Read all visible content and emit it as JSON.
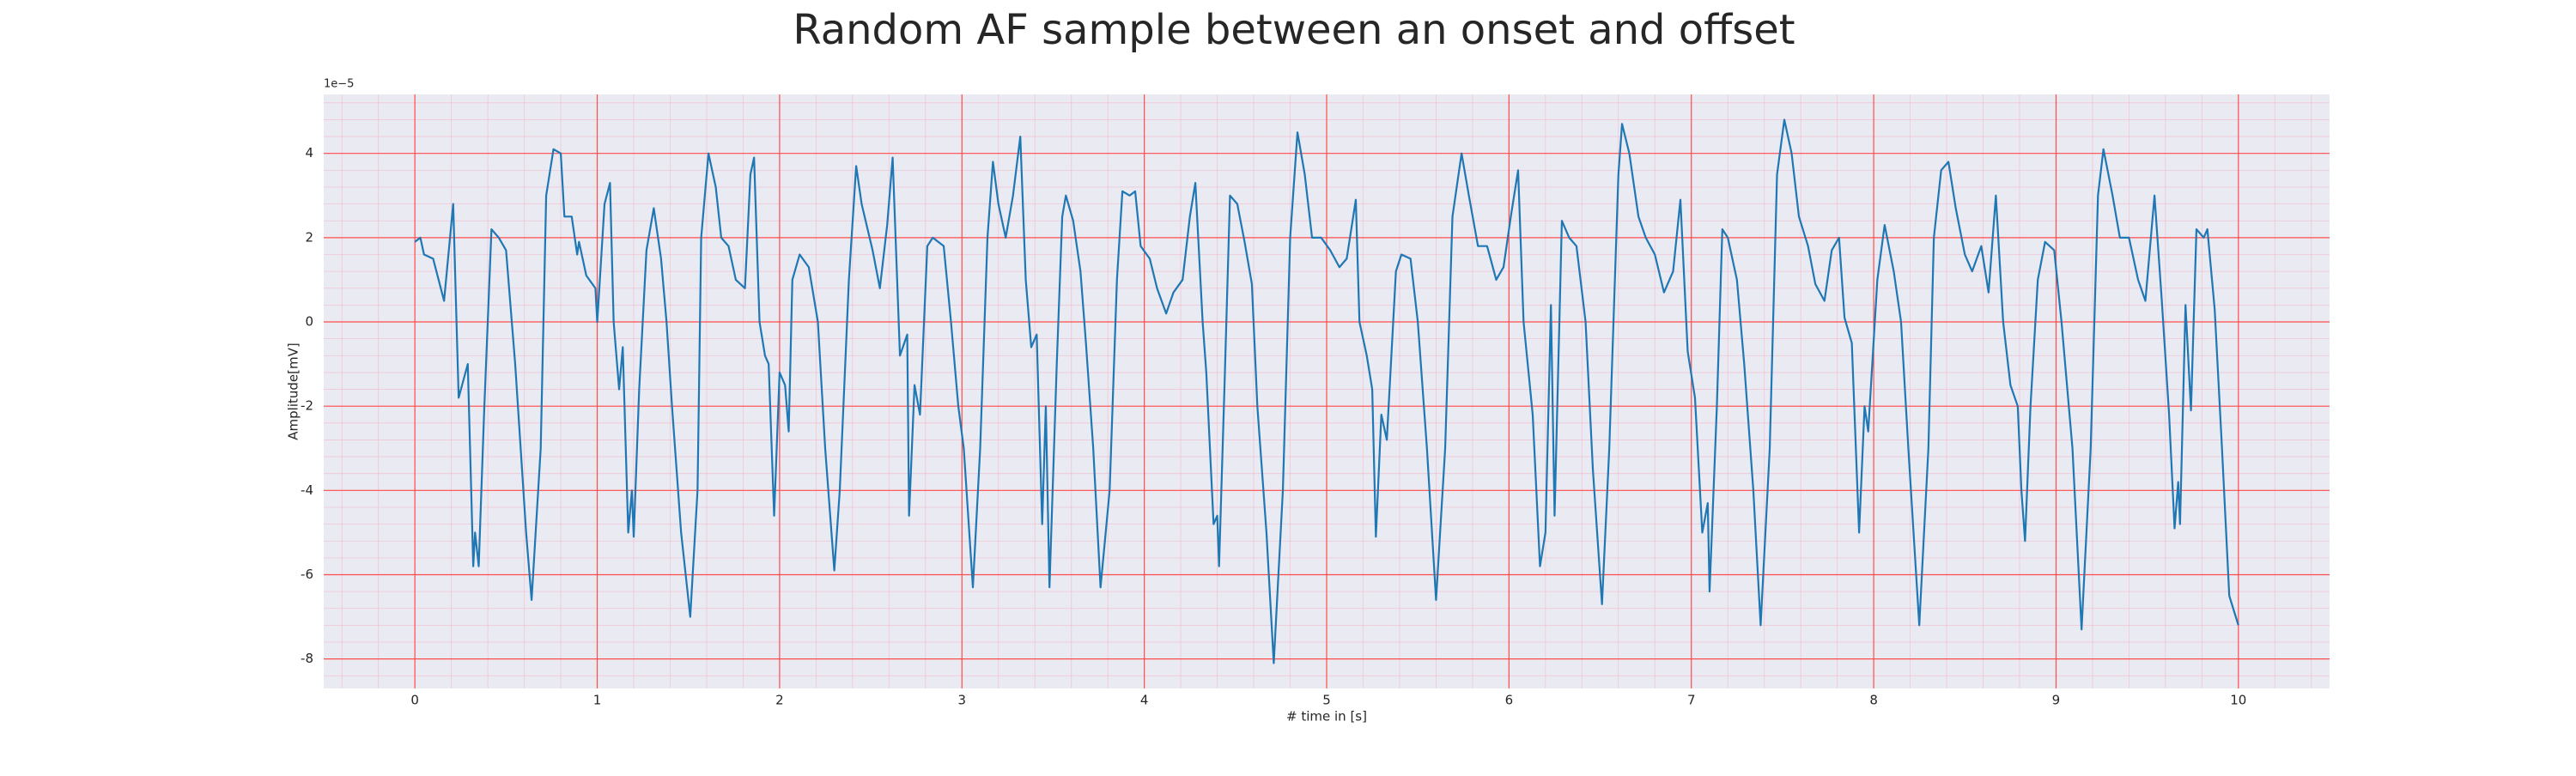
{
  "chart_data": {
    "type": "line",
    "title": "Random AF sample between an onset and offset",
    "xlabel": "# time in [s]",
    "ylabel": "Amplitude[mV]",
    "y_offset_label": "1e−5",
    "color": "#1f77b4",
    "grid": true,
    "minor_grid": true,
    "xlim": [
      -0.5,
      10.5
    ],
    "ylim": [
      -8.7,
      5.4
    ],
    "xticks": [
      0,
      1,
      2,
      3,
      4,
      5,
      6,
      7,
      8,
      9,
      10
    ],
    "yticks": [
      -8,
      -6,
      -4,
      -2,
      0,
      2,
      4
    ],
    "x": [
      0,
      0.03,
      0.05,
      0.1,
      0.13,
      0.16,
      0.21,
      0.24,
      0.29,
      0.32,
      0.33,
      0.35,
      0.38,
      0.42,
      0.46,
      0.5,
      0.55,
      0.61,
      0.64,
      0.69,
      0.72,
      0.76,
      0.8,
      0.82,
      0.86,
      0.89,
      0.9,
      0.94,
      0.99,
      1.0,
      1.04,
      1.07,
      1.09,
      1.12,
      1.14,
      1.17,
      1.19,
      1.2,
      1.23,
      1.27,
      1.31,
      1.35,
      1.38,
      1.41,
      1.46,
      1.51,
      1.55,
      1.57,
      1.61,
      1.65,
      1.68,
      1.72,
      1.76,
      1.81,
      1.84,
      1.86,
      1.89,
      1.92,
      1.94,
      1.97,
      2.0,
      2.03,
      2.05,
      2.07,
      2.11,
      2.16,
      2.21,
      2.25,
      2.3,
      2.33,
      2.38,
      2.42,
      2.45,
      2.51,
      2.55,
      2.59,
      2.62,
      2.66,
      2.7,
      2.71,
      2.74,
      2.77,
      2.81,
      2.84,
      2.9,
      2.94,
      2.98,
      3.01,
      3.06,
      3.1,
      3.14,
      3.17,
      3.2,
      3.24,
      3.28,
      3.32,
      3.35,
      3.38,
      3.41,
      3.44,
      3.46,
      3.48,
      3.52,
      3.55,
      3.57,
      3.61,
      3.65,
      3.68,
      3.72,
      3.76,
      3.81,
      3.85,
      3.88,
      3.92,
      3.95,
      3.98,
      4.03,
      4.07,
      4.12,
      4.16,
      4.21,
      4.25,
      4.28,
      4.32,
      4.34,
      4.38,
      4.4,
      4.41,
      4.44,
      4.47,
      4.51,
      4.55,
      4.59,
      4.62,
      4.67,
      4.71,
      4.76,
      4.8,
      4.84,
      4.88,
      4.92,
      4.97,
      5.02,
      5.07,
      5.11,
      5.16,
      5.18,
      5.22,
      5.25,
      5.27,
      5.3,
      5.33,
      5.38,
      5.41,
      5.46,
      5.5,
      5.55,
      5.6,
      5.65,
      5.69,
      5.74,
      5.78,
      5.83,
      5.88,
      5.93,
      5.97,
      6.01,
      6.05,
      6.08,
      6.13,
      6.17,
      6.2,
      6.23,
      6.25,
      6.29,
      6.33,
      6.37,
      6.42,
      6.46,
      6.51,
      6.55,
      6.6,
      6.62,
      6.66,
      6.71,
      6.75,
      6.8,
      6.85,
      6.9,
      6.94,
      6.98,
      7.02,
      7.06,
      7.09,
      7.1,
      7.14,
      7.17,
      7.2,
      7.25,
      7.29,
      7.34,
      7.38,
      7.43,
      7.47,
      7.51,
      7.55,
      7.59,
      7.64,
      7.68,
      7.73,
      7.77,
      7.81,
      7.84,
      7.88,
      7.92,
      7.95,
      7.97,
      8.02,
      8.06,
      8.11,
      8.15,
      8.19,
      8.25,
      8.3,
      8.33,
      8.37,
      8.41,
      8.45,
      8.5,
      8.54,
      8.59,
      8.63,
      8.67,
      8.71,
      8.75,
      8.79,
      8.81,
      8.83,
      8.86,
      8.9,
      8.94,
      8.99,
      9.03,
      9.09,
      9.14,
      9.19,
      9.23,
      9.26,
      9.31,
      9.35,
      9.4,
      9.45,
      9.49,
      9.54,
      9.58,
      9.62,
      9.65,
      9.67,
      9.68,
      9.71,
      9.74,
      9.77,
      9.81,
      9.83,
      9.87,
      9.91,
      9.95,
      10.0
    ],
    "values": [
      1.9,
      2.0,
      1.6,
      1.5,
      1.0,
      0.5,
      2.8,
      -1.8,
      -1.0,
      -5.8,
      -5.0,
      -5.8,
      -2.1,
      2.2,
      2.0,
      1.7,
      -1.0,
      -5.0,
      -6.6,
      -3.0,
      3.0,
      4.1,
      4.0,
      2.5,
      2.5,
      1.6,
      1.9,
      1.1,
      0.8,
      0.0,
      2.8,
      3.3,
      0.0,
      -1.6,
      -0.6,
      -5.0,
      -4.0,
      -5.1,
      -1.6,
      1.7,
      2.7,
      1.5,
      0.0,
      -2.0,
      -5.0,
      -7.0,
      -4.0,
      2.0,
      4.0,
      3.2,
      2.0,
      1.8,
      1.0,
      0.8,
      3.5,
      3.9,
      0.0,
      -0.8,
      -1.0,
      -4.6,
      -1.2,
      -1.5,
      -2.6,
      1.0,
      1.6,
      1.3,
      0.0,
      -3.0,
      -5.9,
      -4.0,
      1.0,
      3.7,
      2.8,
      1.7,
      0.8,
      2.3,
      3.9,
      -0.8,
      -0.3,
      -4.6,
      -1.5,
      -2.2,
      1.8,
      2.0,
      1.8,
      0.0,
      -2.0,
      -3.0,
      -6.3,
      -3.0,
      2.0,
      3.8,
      2.8,
      2.0,
      3.0,
      4.4,
      1.0,
      -0.6,
      -0.3,
      -4.8,
      -2.0,
      -6.3,
      -1.0,
      2.5,
      3.0,
      2.4,
      1.2,
      -0.5,
      -3.0,
      -6.3,
      -4.0,
      1.0,
      3.1,
      3.0,
      3.1,
      1.8,
      1.5,
      0.8,
      0.2,
      0.7,
      1.0,
      2.5,
      3.3,
      0.0,
      -1.2,
      -4.8,
      -4.6,
      -5.8,
      -1.5,
      3.0,
      2.8,
      1.9,
      0.9,
      -2.0,
      -5.0,
      -8.1,
      -4.0,
      2.0,
      4.5,
      3.5,
      2.0,
      2.0,
      1.7,
      1.3,
      1.5,
      2.9,
      0.0,
      -0.8,
      -1.6,
      -5.1,
      -2.2,
      -2.8,
      1.2,
      1.6,
      1.5,
      0.0,
      -3.0,
      -6.6,
      -3.0,
      2.5,
      4.0,
      3.0,
      1.8,
      1.8,
      1.0,
      1.3,
      2.5,
      3.6,
      0.0,
      -2.2,
      -5.8,
      -5.0,
      0.4,
      -4.6,
      2.4,
      2.0,
      1.8,
      0.0,
      -3.5,
      -6.7,
      -3.0,
      3.5,
      4.7,
      4.0,
      2.5,
      2.0,
      1.6,
      0.7,
      1.2,
      2.9,
      -0.7,
      -1.8,
      -5.0,
      -4.3,
      -6.4,
      -2.0,
      2.2,
      2.0,
      1.0,
      -1.0,
      -4.0,
      -7.2,
      -3.0,
      3.5,
      4.8,
      4.0,
      2.5,
      1.8,
      0.9,
      0.5,
      1.7,
      2.0,
      0.1,
      -0.5,
      -5.0,
      -2.0,
      -2.6,
      1.0,
      2.3,
      1.2,
      0.0,
      -3.0,
      -7.2,
      -3.0,
      2.0,
      3.6,
      3.8,
      2.7,
      1.6,
      1.2,
      1.8,
      0.7,
      3.0,
      0.0,
      -1.5,
      -2.0,
      -4.0,
      -5.2,
      -2.0,
      1.0,
      1.9,
      1.7,
      0.0,
      -3.0,
      -7.3,
      -3.0,
      3.0,
      4.1,
      3.0,
      2.0,
      2.0,
      1.0,
      0.5,
      3.0,
      0.5,
      -2.2,
      -4.9,
      -3.8,
      -4.8,
      0.4,
      -2.1,
      2.2,
      2.0,
      2.2,
      0.3,
      -3.0,
      -6.5,
      -7.2
    ]
  }
}
